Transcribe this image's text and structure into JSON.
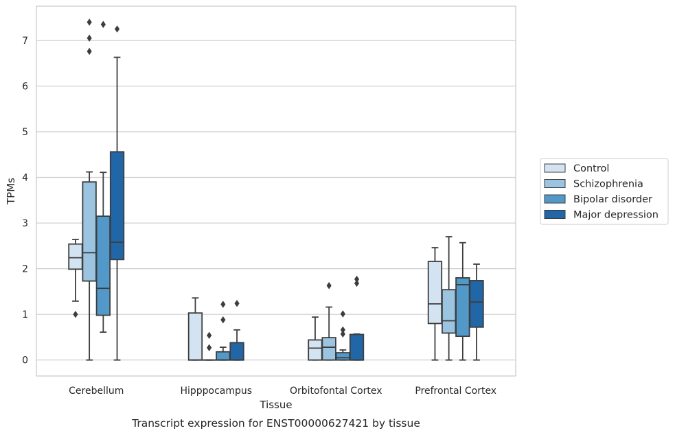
{
  "caption": "Transcript expression for ENST00000627421 by tissue",
  "chart_data": {
    "type": "box",
    "title": "",
    "xlabel": "Tissue",
    "ylabel": "TPMs",
    "ylim": [
      -0.35,
      7.75
    ],
    "yticks": [
      0,
      1,
      2,
      3,
      4,
      5,
      6,
      7
    ],
    "grid": "horizontal",
    "legend_position": "right",
    "categories": [
      "Cerebellum",
      "Hipppocampus",
      "Orbitofontal Cortex",
      "Prefrontal Cortex"
    ],
    "series": [
      {
        "name": "Control",
        "color": "#d4e3f2",
        "boxes": [
          {
            "whislo": 1.29,
            "q1": 1.99,
            "med": 2.24,
            "q3": 2.54,
            "whishi": 2.64,
            "fliers": [
              1.0
            ]
          },
          {
            "whislo": 0.0,
            "q1": 0.0,
            "med": 0.0,
            "q3": 1.03,
            "whishi": 1.36,
            "fliers": []
          },
          {
            "whislo": 0.0,
            "q1": 0.0,
            "med": 0.26,
            "q3": 0.44,
            "whishi": 0.94,
            "fliers": []
          },
          {
            "whislo": 0.0,
            "q1": 0.8,
            "med": 1.23,
            "q3": 2.16,
            "whishi": 2.46,
            "fliers": []
          }
        ]
      },
      {
        "name": "Schizophrenia",
        "color": "#9ac4df",
        "boxes": [
          {
            "whislo": 0.0,
            "q1": 1.73,
            "med": 2.35,
            "q3": 3.9,
            "whishi": 4.12,
            "fliers": [
              7.4,
              7.05,
              6.76
            ]
          },
          {
            "whislo": 0.0,
            "q1": 0.0,
            "med": 0.0,
            "q3": 0.0,
            "whishi": 0.0,
            "fliers": [
              0.54,
              0.27
            ]
          },
          {
            "whislo": 0.0,
            "q1": 0.0,
            "med": 0.28,
            "q3": 0.49,
            "whishi": 1.16,
            "fliers": [
              1.63
            ]
          },
          {
            "whislo": 0.0,
            "q1": 0.59,
            "med": 0.86,
            "q3": 1.54,
            "whishi": 2.7,
            "fliers": []
          }
        ]
      },
      {
        "name": "Bipolar disorder",
        "color": "#5299c9",
        "boxes": [
          {
            "whislo": 0.61,
            "q1": 0.98,
            "med": 1.57,
            "q3": 3.15,
            "whishi": 4.11,
            "fliers": [
              7.35
            ]
          },
          {
            "whislo": 0.0,
            "q1": 0.0,
            "med": 0.0,
            "q3": 0.18,
            "whishi": 0.28,
            "fliers": [
              1.22,
              0.88
            ]
          },
          {
            "whislo": 0.0,
            "q1": 0.0,
            "med": 0.05,
            "q3": 0.16,
            "whishi": 0.22,
            "fliers": [
              1.01,
              0.66,
              0.57
            ]
          },
          {
            "whislo": 0.0,
            "q1": 0.52,
            "med": 1.65,
            "q3": 1.8,
            "whishi": 2.57,
            "fliers": []
          }
        ]
      },
      {
        "name": "Major depression",
        "color": "#2166a7",
        "boxes": [
          {
            "whislo": 0.0,
            "q1": 2.2,
            "med": 2.58,
            "q3": 4.56,
            "whishi": 6.63,
            "fliers": [
              7.25
            ]
          },
          {
            "whislo": 0.0,
            "q1": 0.0,
            "med": 0.0,
            "q3": 0.38,
            "whishi": 0.66,
            "fliers": [
              1.24
            ]
          },
          {
            "whislo": 0.0,
            "q1": 0.0,
            "med": 0.0,
            "q3": 0.56,
            "whishi": 0.57,
            "fliers": [
              1.77,
              1.68
            ]
          },
          {
            "whislo": 0.0,
            "q1": 0.72,
            "med": 1.27,
            "q3": 1.74,
            "whishi": 2.1,
            "fliers": []
          }
        ]
      }
    ]
  }
}
